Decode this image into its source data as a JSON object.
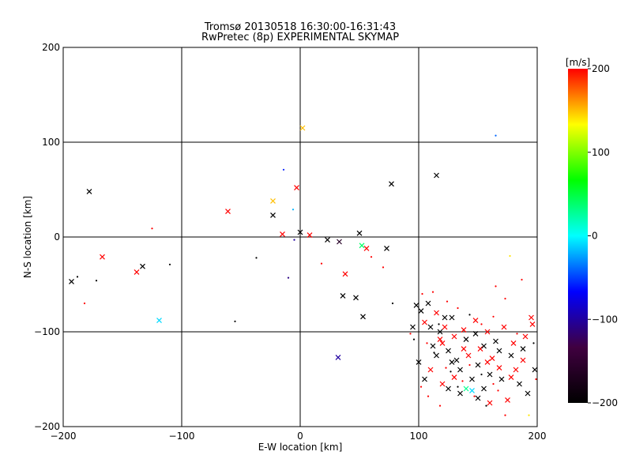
{
  "chart_data": {
    "type": "scatter",
    "title": "Tromsø 20130518 16:30:00-16:31:43",
    "subtitle": "RwPretec (8p) EXPERIMENTAL SKYMAP",
    "xlabel": "E-W location [km]",
    "ylabel": "N-S location [km]",
    "xlim": [
      -200,
      200
    ],
    "ylim": [
      -200,
      200
    ],
    "xticks": [
      -200,
      -100,
      0,
      100,
      200
    ],
    "yticks": [
      -200,
      -100,
      0,
      100,
      200
    ],
    "grid": true,
    "colorbar": {
      "label": "[m/s]",
      "min": -200,
      "max": 200,
      "ticks": [
        -200,
        -100,
        0,
        100,
        200
      ],
      "placement": "right",
      "colormap": [
        "#000000",
        "#400040",
        "#0000ff",
        "#00ffff",
        "#00ff00",
        "#ffff00",
        "#ff0000"
      ]
    },
    "series": [
      {
        "marker": "x",
        "points": [
          [
            -193,
            -47,
            -200
          ],
          [
            -178,
            48,
            -200
          ],
          [
            -167,
            -21,
            200
          ],
          [
            -138,
            -37,
            200
          ],
          [
            -133,
            -31,
            -200
          ],
          [
            -119,
            -88,
            -10
          ],
          [
            -61,
            27,
            200
          ],
          [
            -23,
            38,
            150
          ],
          [
            -23,
            23,
            -200
          ],
          [
            -15,
            3,
            200
          ],
          [
            -3,
            52,
            200
          ],
          [
            0,
            5,
            -200
          ],
          [
            2,
            115,
            150
          ],
          [
            8,
            2,
            200
          ],
          [
            23,
            -3,
            -200
          ],
          [
            32,
            -127,
            -100
          ],
          [
            33,
            -5,
            -160
          ],
          [
            38,
            -39,
            200
          ],
          [
            36,
            -62,
            -200
          ],
          [
            47,
            -64,
            -200
          ],
          [
            50,
            4,
            -200
          ],
          [
            53,
            -84,
            -200
          ],
          [
            52,
            -9,
            40
          ],
          [
            56,
            -12,
            200
          ],
          [
            73,
            -12,
            -200
          ],
          [
            77,
            56,
            -200
          ],
          [
            115,
            65,
            -200
          ],
          [
            95,
            -95,
            -200
          ],
          [
            98,
            -72,
            -200
          ],
          [
            102,
            -78,
            -200
          ],
          [
            105,
            -90,
            200
          ],
          [
            108,
            -70,
            -200
          ],
          [
            110,
            -95,
            -200
          ],
          [
            112,
            -115,
            -200
          ],
          [
            115,
            -80,
            200
          ],
          [
            118,
            -100,
            -200
          ],
          [
            120,
            -112,
            200
          ],
          [
            122,
            -95,
            200
          ],
          [
            125,
            -120,
            -200
          ],
          [
            128,
            -85,
            -200
          ],
          [
            130,
            -105,
            200
          ],
          [
            132,
            -130,
            -200
          ],
          [
            135,
            -140,
            -200
          ],
          [
            138,
            -98,
            200
          ],
          [
            140,
            -108,
            -200
          ],
          [
            142,
            -125,
            200
          ],
          [
            145,
            -150,
            -200
          ],
          [
            148,
            -88,
            200
          ],
          [
            150,
            -135,
            -200
          ],
          [
            152,
            -118,
            200
          ],
          [
            155,
            -160,
            -200
          ],
          [
            158,
            -100,
            200
          ],
          [
            160,
            -145,
            -200
          ],
          [
            162,
            -128,
            200
          ],
          [
            165,
            -110,
            -200
          ],
          [
            168,
            -138,
            200
          ],
          [
            170,
            -150,
            -200
          ],
          [
            172,
            -95,
            200
          ],
          [
            175,
            -172,
            200
          ],
          [
            178,
            -125,
            -200
          ],
          [
            180,
            -112,
            200
          ],
          [
            182,
            -140,
            200
          ],
          [
            185,
            -155,
            -200
          ],
          [
            188,
            -130,
            200
          ],
          [
            190,
            -105,
            200
          ],
          [
            192,
            -165,
            -200
          ],
          [
            195,
            -85,
            200
          ],
          [
            198,
            -140,
            -200
          ],
          [
            100,
            -132,
            -200
          ],
          [
            105,
            -150,
            -200
          ],
          [
            110,
            -140,
            200
          ],
          [
            115,
            -125,
            -200
          ],
          [
            120,
            -155,
            200
          ],
          [
            125,
            -160,
            -200
          ],
          [
            130,
            -148,
            200
          ],
          [
            135,
            -165,
            -200
          ],
          [
            140,
            -160,
            30
          ],
          [
            145,
            -162,
            -10
          ],
          [
            150,
            -170,
            -200
          ],
          [
            155,
            -115,
            -200
          ],
          [
            160,
            -175,
            200
          ],
          [
            118,
            -108,
            200
          ],
          [
            128,
            -132,
            -200
          ],
          [
            138,
            -118,
            200
          ],
          [
            148,
            -102,
            -200
          ],
          [
            158,
            -132,
            200
          ],
          [
            168,
            -120,
            -200
          ],
          [
            178,
            -148,
            200
          ],
          [
            188,
            -118,
            -200
          ],
          [
            196,
            -92,
            200
          ],
          [
            122,
            -85,
            -200
          ]
        ]
      },
      {
        "marker": "dot",
        "points": [
          [
            -188,
            -42,
            -200
          ],
          [
            -182,
            -70,
            200
          ],
          [
            -172,
            -46,
            -200
          ],
          [
            -125,
            9,
            200
          ],
          [
            -110,
            -29,
            -200
          ],
          [
            -55,
            -89,
            -200
          ],
          [
            -37,
            -22,
            -200
          ],
          [
            -14,
            71,
            -60
          ],
          [
            -10,
            -43,
            -110
          ],
          [
            -6,
            29,
            -20
          ],
          [
            -5,
            -3,
            -100
          ],
          [
            18,
            -28,
            200
          ],
          [
            60,
            -21,
            200
          ],
          [
            70,
            -32,
            200
          ],
          [
            78,
            -70,
            -200
          ],
          [
            93,
            -102,
            200
          ],
          [
            96,
            -108,
            -200
          ],
          [
            103,
            -60,
            200
          ],
          [
            107,
            -112,
            200
          ],
          [
            112,
            -58,
            200
          ],
          [
            117,
            -92,
            -200
          ],
          [
            124,
            -68,
            200
          ],
          [
            127,
            -142,
            -200
          ],
          [
            133,
            -75,
            200
          ],
          [
            137,
            -152,
            200
          ],
          [
            143,
            -82,
            -200
          ],
          [
            147,
            -168,
            200
          ],
          [
            153,
            -92,
            200
          ],
          [
            157,
            -178,
            -200
          ],
          [
            163,
            -84,
            200
          ],
          [
            165,
            -52,
            200
          ],
          [
            167,
            -162,
            200
          ],
          [
            173,
            -65,
            200
          ],
          [
            177,
            -20,
            140
          ],
          [
            183,
            -102,
            200
          ],
          [
            187,
            -45,
            200
          ],
          [
            193,
            -188,
            140
          ],
          [
            197,
            -112,
            -200
          ],
          [
            199,
            -150,
            200
          ],
          [
            165,
            107,
            -40
          ],
          [
            102,
            -158,
            200
          ],
          [
            108,
            -168,
            200
          ],
          [
            113,
            -122,
            -200
          ],
          [
            118,
            -178,
            200
          ],
          [
            123,
            -138,
            200
          ],
          [
            133,
            -158,
            -200
          ],
          [
            143,
            -135,
            200
          ],
          [
            153,
            -145,
            -200
          ],
          [
            163,
            -155,
            200
          ],
          [
            173,
            -188,
            200
          ]
        ]
      }
    ]
  }
}
